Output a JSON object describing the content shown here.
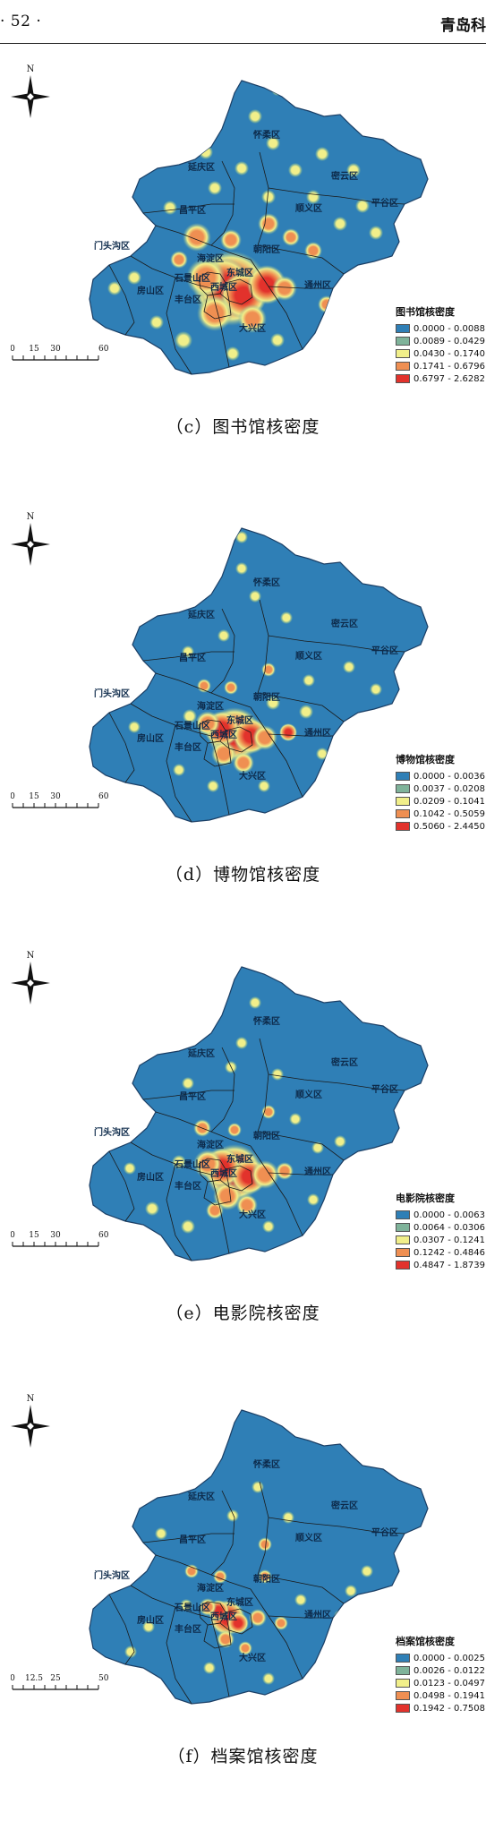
{
  "header": {
    "page_number": "· 52 ·",
    "journal": "青岛科"
  },
  "compass_letter": "N",
  "colors": {
    "base": "#2f7fb6",
    "ramp": [
      "#2f7fb6",
      "#7fb39a",
      "#f1ef8a",
      "#ef8f52",
      "#e2322c"
    ]
  },
  "district_labels": [
    "怀柔区",
    "延庆区",
    "密云区",
    "昌平区",
    "顺义区",
    "平谷区",
    "门头沟区",
    "海淀区",
    "朝阳区",
    "石景山区",
    "东城区",
    "西城区",
    "丰台区",
    "通州区",
    "房山区",
    "大兴区"
  ],
  "panels": [
    {
      "caption": "（c）图书馆核密度",
      "legend_title": "图书馆核密度",
      "legend_items": [
        "0.0000 - 0.0088",
        "0.0089 - 0.0429",
        "0.0430 - 0.1740",
        "0.1741 - 0.6796",
        "0.6797 - 2.6282"
      ],
      "scale_labels": [
        "0",
        "15",
        "30",
        "60 km"
      ]
    },
    {
      "caption": "（d）博物馆核密度",
      "legend_title": "博物馆核密度",
      "legend_items": [
        "0.0000 - 0.0036",
        "0.0037 - 0.0208",
        "0.0209 - 0.1041",
        "0.1042 - 0.5059",
        "0.5060 - 2.4450"
      ],
      "scale_labels": [
        "0",
        "15",
        "30",
        "60 km"
      ]
    },
    {
      "caption": "（e）电影院核密度",
      "legend_title": "电影院核密度",
      "legend_items": [
        "0.0000 - 0.0063",
        "0.0064 - 0.0306",
        "0.0307 - 0.1241",
        "0.1242 - 0.4846",
        "0.4847 - 1.8739"
      ],
      "scale_labels": [
        "0",
        "15",
        "30",
        "60 km"
      ]
    },
    {
      "caption": "（f）档案馆核密度",
      "legend_title": "档案馆核密度",
      "legend_items": [
        "0.0000 - 0.0025",
        "0.0026 - 0.0122",
        "0.0123 - 0.0497",
        "0.0498 - 0.1941",
        "0.1942 - 0.7508"
      ],
      "scale_labels": [
        "0",
        "12.5",
        "25",
        "50 km"
      ]
    }
  ]
}
